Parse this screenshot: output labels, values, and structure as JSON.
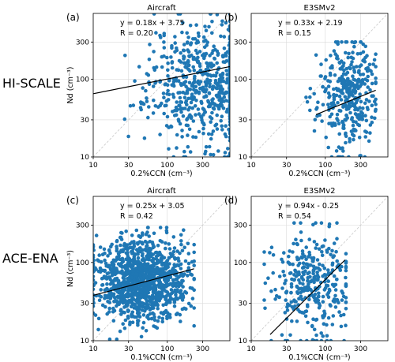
{
  "row_labels": [
    "HI-SCALE",
    "ACE-ENA"
  ],
  "colors": {
    "points": "#1f77b4",
    "fit": "#000000",
    "one_to_one": "#c8c8c8",
    "grid": "#d9d9d9"
  },
  "chart_data": [
    {
      "type": "scatter",
      "panel_label": "(a)",
      "title": "Aircraft",
      "xlabel": "0.2%CCN (cm⁻³)",
      "ylabel": "Nd (cm⁻³)",
      "xscale": "log",
      "yscale": "log",
      "xlim": [
        10,
        700
      ],
      "ylim": [
        10,
        700
      ],
      "xticks": [
        10,
        30,
        100,
        300
      ],
      "yticks": [
        10,
        30,
        100,
        300
      ],
      "grid": true,
      "one_to_one_line": true,
      "annotation": [
        "y = 0.18x + 3.75",
        "R = 0.20"
      ],
      "fit_line": {
        "x": [
          10,
          700
        ],
        "y": [
          65,
          145
        ]
      },
      "points": {
        "seed": 11,
        "n": 620,
        "x_log_center": 2.5,
        "x_log_spread": 0.38,
        "y_log_center": 1.95,
        "y_log_spread": 0.4,
        "x_min": 11,
        "x_max": 700,
        "y_min": 10,
        "y_max": 690
      }
    },
    {
      "type": "scatter",
      "panel_label": "(b)",
      "title": "E3SMv2",
      "xlabel": "0.2%CCN (cm⁻³)",
      "ylabel": "",
      "xscale": "log",
      "yscale": "log",
      "xlim": [
        10,
        700
      ],
      "ylim": [
        10,
        700
      ],
      "xticks": [
        10,
        30,
        100,
        300
      ],
      "yticks": [
        10,
        30,
        100,
        300
      ],
      "grid": true,
      "one_to_one_line": true,
      "annotation": [
        "y = 0.33x + 2.19",
        "R = 0.15"
      ],
      "fit_line": {
        "x": [
          75,
          480
        ],
        "y": [
          35,
          72
        ]
      },
      "points": {
        "seed": 23,
        "n": 360,
        "x_log_center": 2.3,
        "x_log_spread": 0.2,
        "y_log_center": 1.8,
        "y_log_spread": 0.35,
        "x_min": 55,
        "x_max": 480,
        "y_min": 10,
        "y_max": 300
      }
    },
    {
      "type": "scatter",
      "panel_label": "(c)",
      "title": "Aircraft",
      "xlabel": "0.1%CCN (cm⁻³)",
      "ylabel": "Nd (cm⁻³)",
      "xscale": "log",
      "yscale": "log",
      "xlim": [
        10,
        700
      ],
      "ylim": [
        10,
        700
      ],
      "xticks": [
        10,
        30,
        100,
        300
      ],
      "yticks": [
        10,
        30,
        100,
        300
      ],
      "grid": true,
      "one_to_one_line": true,
      "annotation": [
        "y = 0.25x + 3.05",
        "R = 0.42"
      ],
      "fit_line": {
        "x": [
          10,
          230
        ],
        "y": [
          38,
          83
        ]
      },
      "points": {
        "seed": 37,
        "n": 1200,
        "x_log_center": 1.65,
        "x_log_spread": 0.3,
        "y_log_center": 1.78,
        "y_log_spread": 0.26,
        "x_min": 10,
        "x_max": 230,
        "y_min": 10,
        "y_max": 280
      }
    },
    {
      "type": "scatter",
      "panel_label": "(d)",
      "title": "E3SMv2",
      "xlabel": "0.1%CCN (cm⁻³)",
      "ylabel": "",
      "xscale": "log",
      "yscale": "log",
      "xlim": [
        10,
        700
      ],
      "ylim": [
        10,
        700
      ],
      "xticks": [
        10,
        30,
        100,
        300
      ],
      "yticks": [
        10,
        30,
        100,
        300
      ],
      "grid": true,
      "one_to_one_line": true,
      "annotation": [
        "y = 0.94x - 0.25",
        "R = 0.54"
      ],
      "fit_line": {
        "x": [
          18,
          185
        ],
        "y": [
          12,
          108
        ]
      },
      "points": {
        "seed": 53,
        "n": 340,
        "x_log_center": 1.85,
        "x_log_spread": 0.3,
        "y_log_center": 1.7,
        "y_log_spread": 0.35,
        "x_min": 15,
        "x_max": 190,
        "y_min": 10,
        "y_max": 320
      }
    }
  ]
}
